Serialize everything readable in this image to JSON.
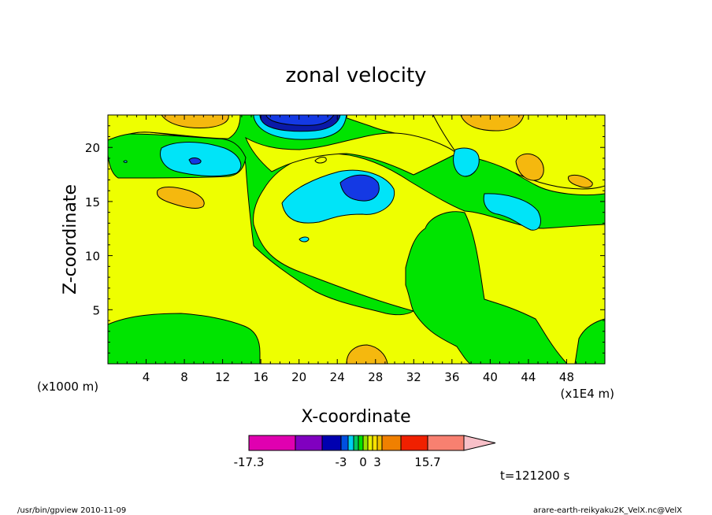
{
  "chart_data": {
    "type": "heatmap",
    "title": "zonal velocity",
    "xlabel": "X-coordinate",
    "ylabel": "Z-coordinate",
    "x_unit_note": "(x1E4 m)",
    "y_unit_note": "(x1000 m)",
    "xlim": [
      0,
      52
    ],
    "ylim": [
      0,
      23
    ],
    "x_ticks": [
      4,
      8,
      12,
      16,
      20,
      24,
      28,
      32,
      36,
      40,
      44,
      48
    ],
    "y_ticks": [
      5,
      10,
      15,
      20
    ],
    "time_label": "t=121200 s",
    "colorbar": {
      "min": -17.3,
      "max": 15.7,
      "labels": [
        "-17.3",
        "-3",
        "0",
        "3",
        "15.7"
      ],
      "colors": [
        "#e000b0",
        "#8000c0",
        "#0000b0",
        "#0050e0",
        "#00d0f0",
        "#00c860",
        "#00e000",
        "#98e000",
        "#e8f000",
        "#f8e000",
        "#f0c000",
        "#f08000",
        "#f02000",
        "#f88070",
        "#f8c0c8"
      ]
    },
    "colors": {
      "background_yellow": "#eeff00",
      "green": "#00e400",
      "light_yellow_green": "#c8f400",
      "orange": "#f5b80e",
      "cyan": "#00e4f8",
      "blue": "#1439e4",
      "navy": "#0a1aa8"
    }
  },
  "footer": {
    "left": "/usr/bin/gpview   2010-11-09",
    "right": "arare-earth-reikyaku2K_VelX.nc@VelX"
  }
}
